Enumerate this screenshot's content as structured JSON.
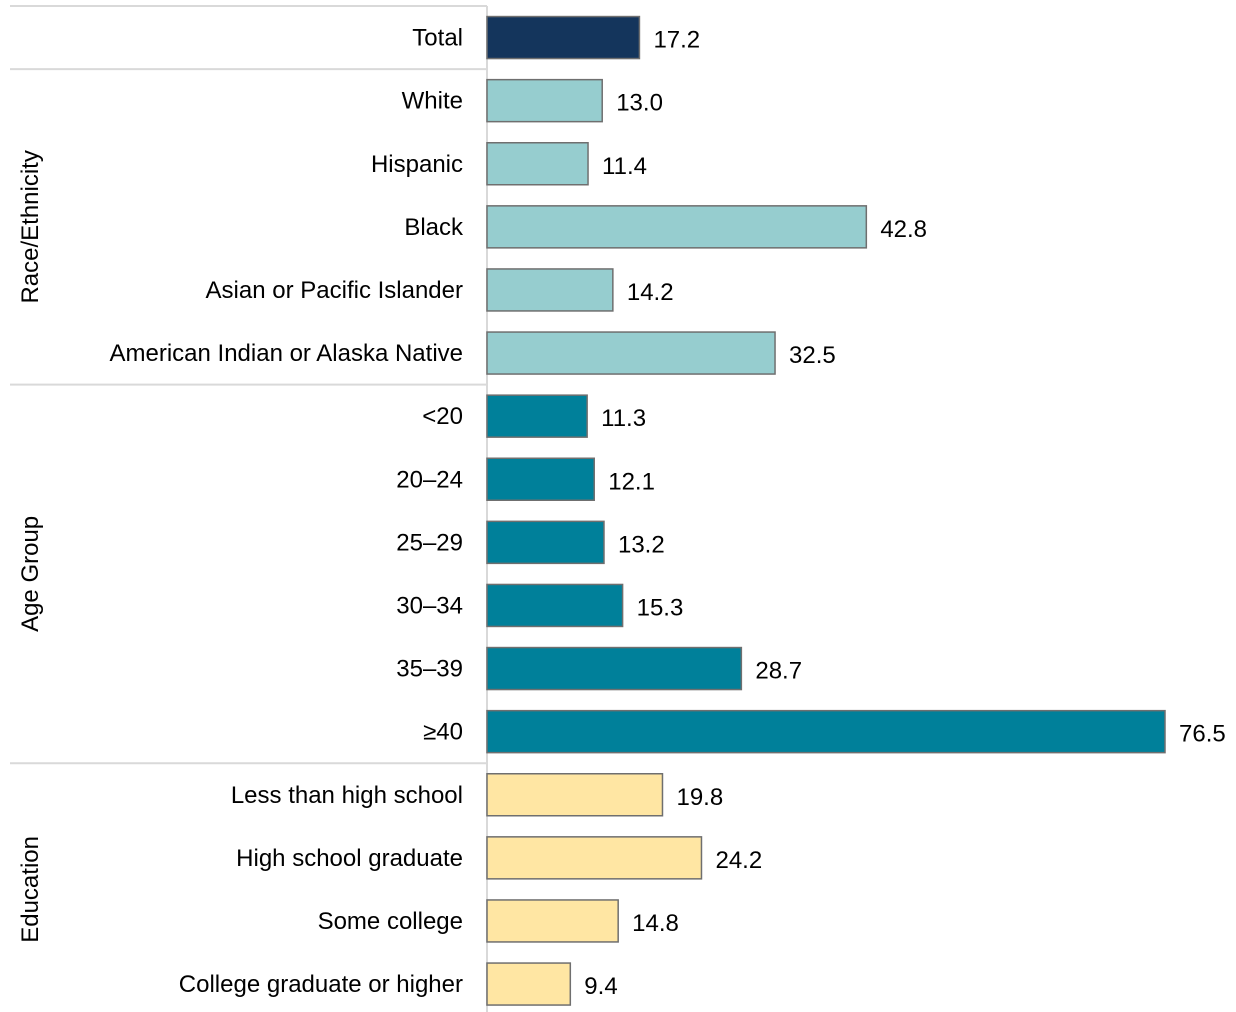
{
  "chart_data": {
    "type": "bar",
    "orientation": "horizontal",
    "title": "",
    "xlabel": "",
    "ylabel": "",
    "xlim": [
      0,
      76.5
    ],
    "grid": false,
    "legend": "none",
    "groups": [
      {
        "name": "",
        "color": "#14355c",
        "categories": [
          "Total"
        ],
        "values": [
          17.2
        ]
      },
      {
        "name": "Race/Ethnicity",
        "color": "#96cdcf",
        "categories": [
          "White",
          "Hispanic",
          "Black",
          "Asian or Pacific Islander",
          "American Indian or Alaska Native"
        ],
        "values": [
          13.0,
          11.4,
          42.8,
          14.2,
          32.5
        ]
      },
      {
        "name": "Age Group",
        "color": "#00809a",
        "categories": [
          "<20",
          "20–24",
          "25–29",
          "30–34",
          "35–39",
          "≥40"
        ],
        "values": [
          11.3,
          12.1,
          13.2,
          15.3,
          28.7,
          76.5
        ]
      },
      {
        "name": "Education",
        "color": "#ffe6a3",
        "categories": [
          "Less than high school",
          "High school graduate",
          "Some college",
          "College graduate or higher"
        ],
        "values": [
          19.8,
          24.2,
          14.8,
          9.4
        ]
      }
    ]
  }
}
